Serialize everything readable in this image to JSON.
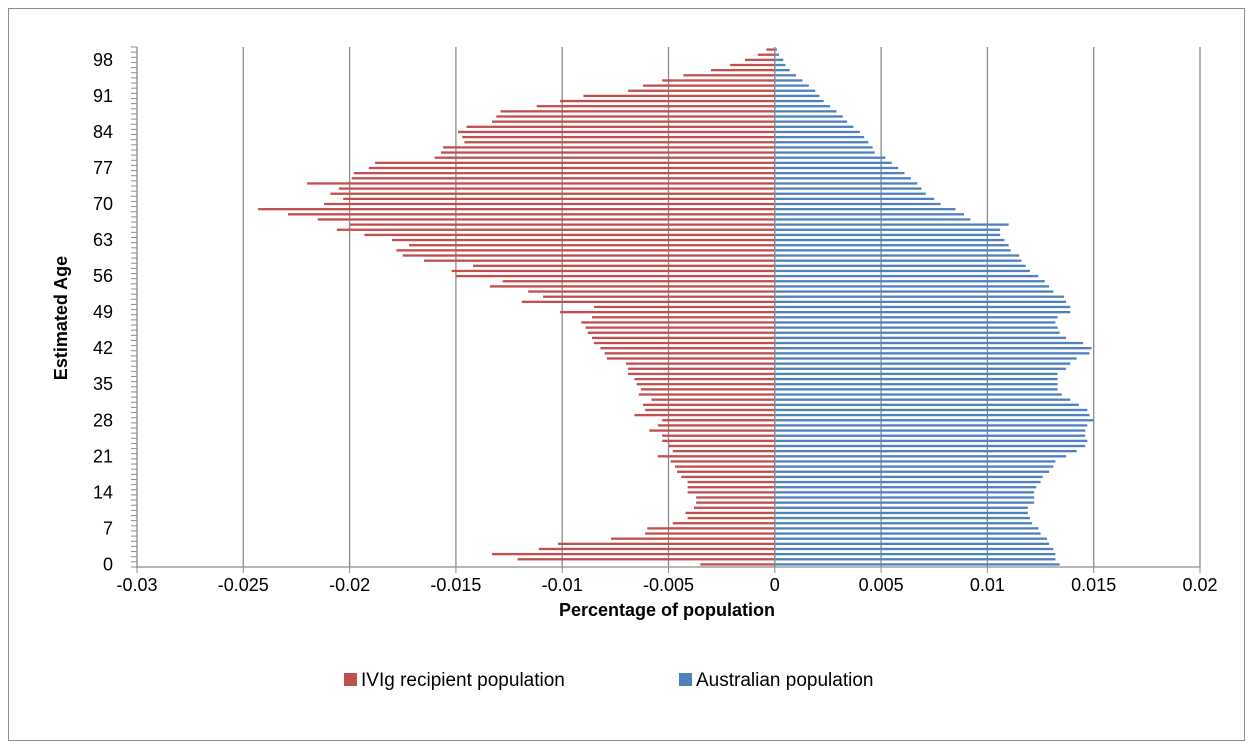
{
  "chart_data": {
    "type": "bar",
    "orientation": "horizontal",
    "layout": "population-pyramid",
    "title": "",
    "xlabel": "Percentage of population",
    "ylabel": "Estimated Age",
    "xlim": [
      -0.03,
      0.02
    ],
    "x_ticks": [
      "-0.03",
      "-0.025",
      "-0.02",
      "-0.015",
      "-0.01",
      "-0.005",
      "0",
      "0.005",
      "0.01",
      "0.015",
      "0.02"
    ],
    "y_ticks": [
      "0",
      "7",
      "14",
      "21",
      "28",
      "35",
      "42",
      "49",
      "56",
      "63",
      "70",
      "77",
      "84",
      "91",
      "98"
    ],
    "grid": "vertical major gridlines",
    "legend_position": "bottom",
    "categories_note": "ages 0 to 100",
    "series": [
      {
        "name": "IVIg recipient population",
        "color": "#C0504D",
        "values": [
          -0.0035,
          -0.0121,
          -0.0133,
          -0.0111,
          -0.0102,
          -0.0077,
          -0.0061,
          -0.006,
          -0.0048,
          -0.0041,
          -0.0042,
          -0.0038,
          -0.0037,
          -0.0037,
          -0.0041,
          -0.0041,
          -0.0041,
          -0.0044,
          -0.0046,
          -0.0047,
          -0.0049,
          -0.0055,
          -0.0048,
          -0.005,
          -0.0053,
          -0.0053,
          -0.0059,
          -0.0055,
          -0.0053,
          -0.0066,
          -0.0061,
          -0.0062,
          -0.0058,
          -0.0064,
          -0.0063,
          -0.0065,
          -0.0066,
          -0.0069,
          -0.0069,
          -0.007,
          -0.0079,
          -0.008,
          -0.0082,
          -0.0085,
          -0.0086,
          -0.0088,
          -0.0089,
          -0.0091,
          -0.0086,
          -0.0101,
          -0.0085,
          -0.0119,
          -0.0109,
          -0.0116,
          -0.0134,
          -0.0128,
          -0.015,
          -0.0152,
          -0.0142,
          -0.0165,
          -0.0175,
          -0.0178,
          -0.0172,
          -0.018,
          -0.0193,
          -0.0206,
          -0.02,
          -0.0215,
          -0.0229,
          -0.0243,
          -0.0212,
          -0.0203,
          -0.0209,
          -0.0205,
          -0.022,
          -0.0199,
          -0.0198,
          -0.0191,
          -0.0188,
          -0.016,
          -0.0157,
          -0.0156,
          -0.0146,
          -0.0147,
          -0.0149,
          -0.0145,
          -0.0133,
          -0.0131,
          -0.0129,
          -0.0112,
          -0.0101,
          -0.009,
          -0.0069,
          -0.0062,
          -0.0053,
          -0.0043,
          -0.003,
          -0.0021,
          -0.0014,
          -0.0008,
          -0.0004
        ]
      },
      {
        "name": "Australian population",
        "color": "#4F81BD",
        "values": [
          0.0134,
          0.0132,
          0.0132,
          0.0131,
          0.0129,
          0.0128,
          0.0125,
          0.0124,
          0.0121,
          0.012,
          0.0119,
          0.0119,
          0.0122,
          0.0122,
          0.0122,
          0.0123,
          0.0125,
          0.0126,
          0.0129,
          0.0131,
          0.0132,
          0.0137,
          0.0142,
          0.0146,
          0.0147,
          0.0146,
          0.0146,
          0.0147,
          0.015,
          0.0148,
          0.0147,
          0.0143,
          0.0139,
          0.0135,
          0.0133,
          0.0133,
          0.0133,
          0.0133,
          0.0137,
          0.0139,
          0.0142,
          0.0148,
          0.0149,
          0.0145,
          0.0137,
          0.0134,
          0.0133,
          0.0132,
          0.0133,
          0.0139,
          0.0139,
          0.0137,
          0.0136,
          0.0131,
          0.0129,
          0.0127,
          0.0124,
          0.012,
          0.0118,
          0.0116,
          0.0115,
          0.0111,
          0.011,
          0.0108,
          0.0106,
          0.0106,
          0.011,
          0.0092,
          0.0089,
          0.0085,
          0.0078,
          0.0075,
          0.0071,
          0.0069,
          0.0067,
          0.0064,
          0.0061,
          0.0058,
          0.0055,
          0.0052,
          0.0047,
          0.0046,
          0.0044,
          0.0042,
          0.004,
          0.0037,
          0.0034,
          0.0032,
          0.0029,
          0.0026,
          0.0023,
          0.0021,
          0.0019,
          0.0016,
          0.0013,
          0.001,
          0.0007,
          0.0005,
          0.0004,
          0.0002,
          0.0001
        ]
      }
    ]
  }
}
